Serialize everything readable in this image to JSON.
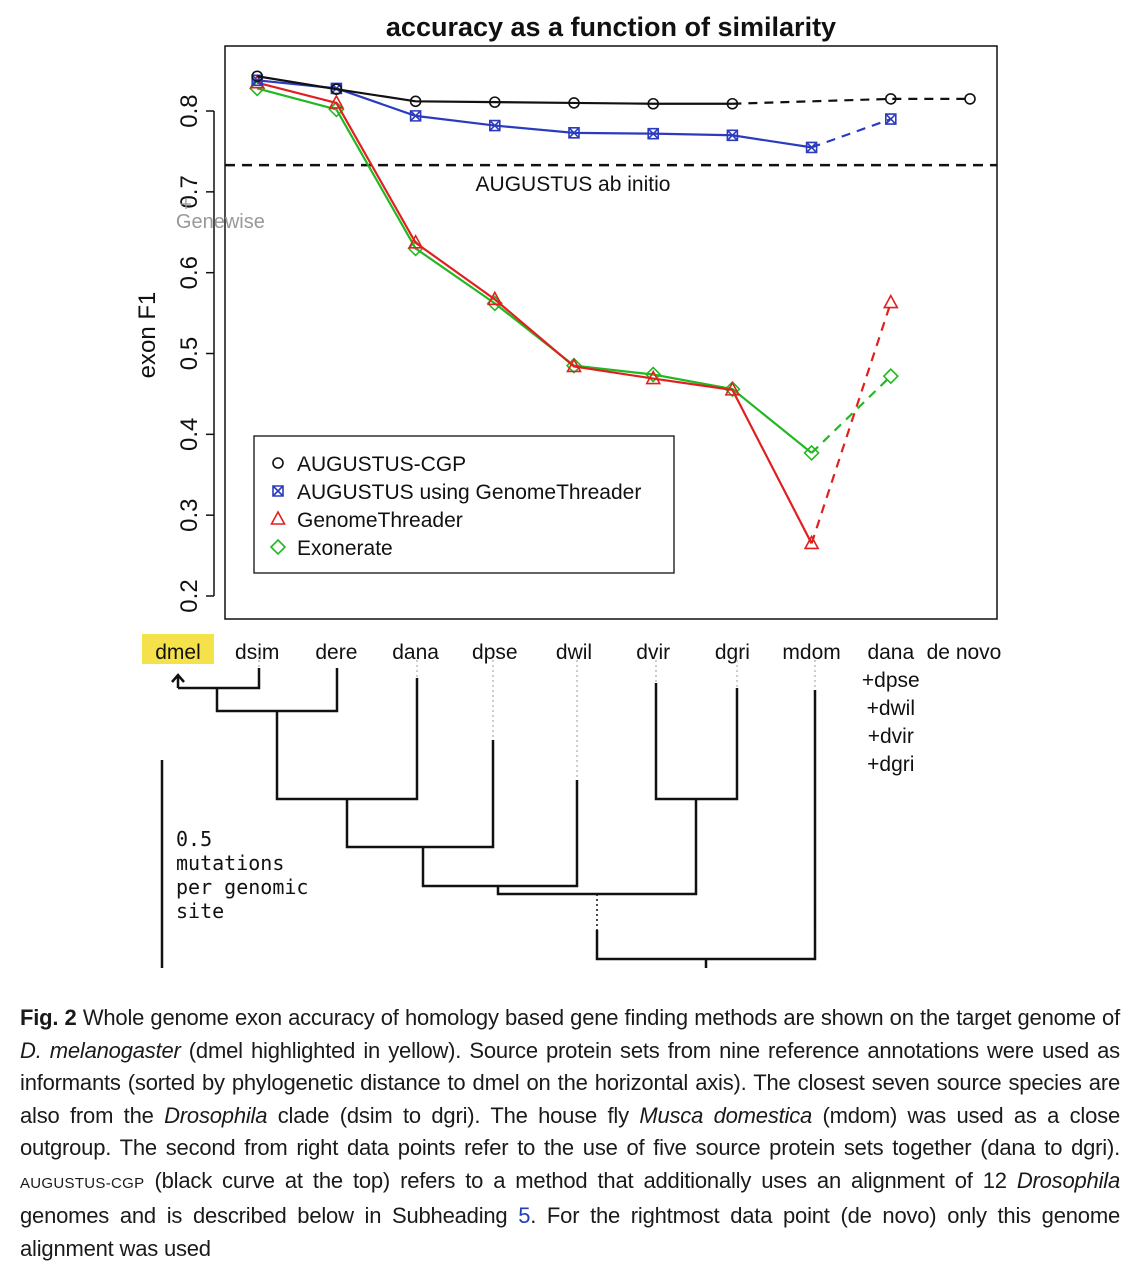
{
  "chart_data": {
    "type": "line",
    "title": "accuracy as a function of similarity",
    "xlabel": "",
    "ylabel": "exon F1",
    "ylim": [
      0.2,
      0.85
    ],
    "yticks": [
      "0.2",
      "0.3",
      "0.4",
      "0.5",
      "0.6",
      "0.7",
      "0.8"
    ],
    "ytick_values": [
      0.2,
      0.3,
      0.4,
      0.5,
      0.6,
      0.7,
      0.8
    ],
    "categories": [
      "dmel",
      "dsim",
      "dere",
      "dana",
      "dpse",
      "dwil",
      "dvir",
      "dgri",
      "mdom",
      "dana\n+dpse\n+dwil\n+dvir\n+dgri",
      "de novo"
    ],
    "category_labels": [
      [
        "dmel"
      ],
      [
        "dsim"
      ],
      [
        "dere"
      ],
      [
        "dana"
      ],
      [
        "dpse"
      ],
      [
        "dwil"
      ],
      [
        "dvir"
      ],
      [
        "dgri"
      ],
      [
        "mdom"
      ],
      [
        "dana",
        "+dpse",
        "+dwil",
        "+dvir",
        "+dgri"
      ],
      [
        "de novo"
      ]
    ],
    "highlighted_category": "dmel",
    "series": [
      {
        "name": "AUGUSTUS-CGP",
        "color": "#111111",
        "marker": "circle",
        "points": [
          [
            1,
            0.843
          ],
          [
            2,
            0.827
          ],
          [
            3,
            0.812
          ],
          [
            4,
            0.811
          ],
          [
            5,
            0.81
          ],
          [
            6,
            0.809
          ],
          [
            7,
            0.809
          ],
          [
            9,
            0.815
          ],
          [
            10,
            0.815
          ]
        ],
        "dashed_from_index": 6
      },
      {
        "name": "AUGUSTUS using GenomeThreader",
        "color": "#2b3bbd",
        "marker": "square-x",
        "points": [
          [
            1,
            0.838
          ],
          [
            2,
            0.828
          ],
          [
            3,
            0.794
          ],
          [
            4,
            0.782
          ],
          [
            5,
            0.773
          ],
          [
            6,
            0.772
          ],
          [
            7,
            0.77
          ],
          [
            8,
            0.755
          ],
          [
            9,
            0.79
          ]
        ],
        "dashed_from_index": 7
      },
      {
        "name": "GenomeThreader",
        "color": "#e02020",
        "marker": "triangle",
        "points": [
          [
            1,
            0.835
          ],
          [
            2,
            0.81
          ],
          [
            3,
            0.637
          ],
          [
            4,
            0.567
          ],
          [
            5,
            0.484
          ],
          [
            6,
            0.469
          ],
          [
            7,
            0.455
          ],
          [
            8,
            0.265
          ],
          [
            9,
            0.563
          ]
        ],
        "dashed_from_index": 7
      },
      {
        "name": "Exonerate",
        "color": "#22b822",
        "marker": "diamond",
        "points": [
          [
            1,
            0.828
          ],
          [
            2,
            0.802
          ],
          [
            3,
            0.63
          ],
          [
            4,
            0.562
          ],
          [
            5,
            0.485
          ],
          [
            6,
            0.474
          ],
          [
            7,
            0.456
          ],
          [
            8,
            0.377
          ],
          [
            9,
            0.472
          ]
        ],
        "dashed_from_index": 7
      }
    ],
    "reference_lines": [
      {
        "label": "AUGUSTUS ab initio",
        "y": 0.733,
        "style": "dashed",
        "color": "#111111"
      }
    ],
    "annotations": [
      {
        "label": "Genewise",
        "x": 0.1,
        "y": 0.685,
        "color": "#999999",
        "marker": "+"
      }
    ],
    "legend": {
      "placement": "bottom-left"
    },
    "grid": false
  },
  "tree": {
    "scale_label": [
      "0.5",
      "mutations",
      "per genomic",
      "site"
    ]
  },
  "caption": {
    "label": "Fig. 2",
    "segments": [
      {
        "style": "normal",
        "text": " Whole genome exon accuracy of homology based gene finding methods are shown on the target genome of "
      },
      {
        "style": "italic",
        "text": "D. melanogaster"
      },
      {
        "style": "normal",
        "text": " (dmel highlighted in yellow). Source protein sets from nine reference annotations were used as informants (sorted by phylogenetic distance to dmel on the horizontal axis). The closest seven source species are also from the "
      },
      {
        "style": "italic",
        "text": "Drosophila"
      },
      {
        "style": "normal",
        "text": " clade (dsim to dgri). The house fly "
      },
      {
        "style": "italic",
        "text": "Musca domestica"
      },
      {
        "style": "normal",
        "text": " (mdom) was used as a close outgroup. The second from right data points refer to the use of five source protein sets together (dana to dgri). "
      },
      {
        "style": "smallcaps",
        "text": "AUGUSTUS-CGP"
      },
      {
        "style": "normal",
        "text": " (black curve at the top) refers to a method that additionally uses an alignment of 12 "
      },
      {
        "style": "italic",
        "text": "Drosophila"
      },
      {
        "style": "normal",
        "text": " genomes and is described below in Subheading "
      },
      {
        "style": "link",
        "text": "5"
      },
      {
        "style": "normal",
        "text": ". For the rightmost data point (de novo) only this genome alignment was used"
      }
    ]
  },
  "colors": {
    "highlight": "#f5e14a",
    "axis": "#111111",
    "tree": "#111111",
    "tree_dotted": "#bbbbbb",
    "link": "#1f3fbf"
  }
}
